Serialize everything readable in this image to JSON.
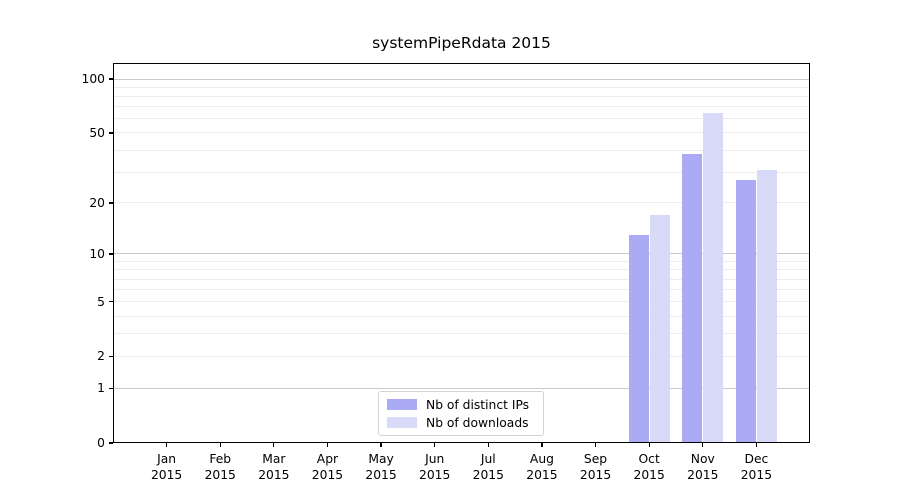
{
  "chart_data": {
    "type": "bar",
    "title": "systemPipeRdata 2015",
    "x_tick_months": [
      "Jan",
      "Feb",
      "Mar",
      "Apr",
      "May",
      "Jun",
      "Jul",
      "Aug",
      "Sep",
      "Oct",
      "Nov",
      "Dec"
    ],
    "x_tick_year": "2015",
    "y_ticks": [
      0,
      1,
      2,
      5,
      10,
      20,
      50,
      100
    ],
    "y_major_gridlines": [
      1,
      10,
      100
    ],
    "y_minor_gridlines": [
      2,
      3,
      4,
      5,
      6,
      7,
      8,
      9,
      20,
      30,
      40,
      50,
      60,
      70,
      80,
      90
    ],
    "y_scale": "log1p",
    "ylim": [
      0,
      123
    ],
    "grid": true,
    "legend_position": "lower center",
    "series": [
      {
        "name": "Nb of distinct IPs",
        "color": "#aaaaf5",
        "values": [
          0,
          0,
          0,
          0,
          0,
          0,
          0,
          0,
          0,
          13,
          38,
          27
        ]
      },
      {
        "name": "Nb of downloads",
        "color": "#d9d9f8",
        "values": [
          0,
          0,
          0,
          0,
          0,
          0,
          0,
          0,
          0,
          17,
          65,
          31
        ]
      }
    ],
    "colors": {
      "major_grid": "#c9c9c9",
      "minor_grid": "#ededed",
      "axis": "#000000",
      "text": "#000000",
      "legend_border": "#d4d4d4",
      "background": "#ffffff"
    }
  }
}
